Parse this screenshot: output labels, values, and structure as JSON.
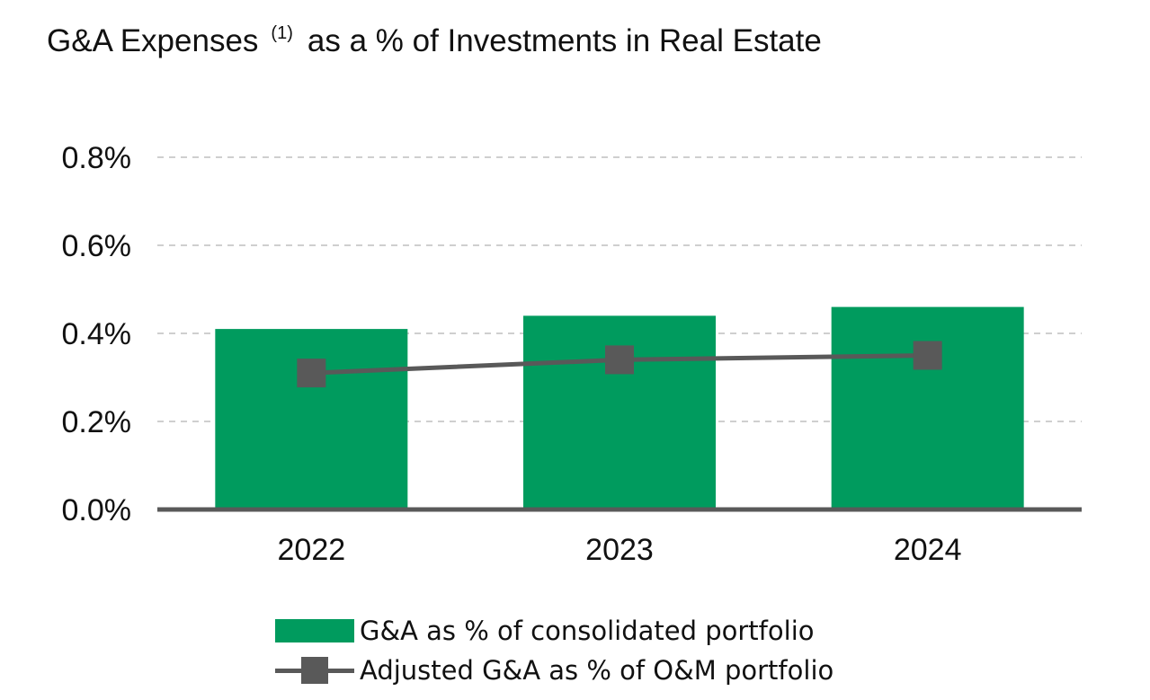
{
  "title": {
    "text": "G&A Expenses",
    "superscript": "(1)",
    "suffix": "as a % of Investments in Real Estate"
  },
  "colors": {
    "bar": "#009B5E",
    "line": "#595959",
    "grid": "#BFBFBF",
    "axis": "#595959"
  },
  "chart_data": {
    "type": "bar",
    "categories": [
      "2022",
      "2023",
      "2024"
    ],
    "y_tick_labels": [
      "0.0%",
      "0.2%",
      "0.4%",
      "0.6%",
      "0.8%"
    ],
    "y_ticks": [
      0.0,
      0.2,
      0.4,
      0.6,
      0.8
    ],
    "ylim": [
      0.0,
      0.8
    ],
    "y_unit": "%",
    "grid": true,
    "legend_position": "bottom",
    "series": [
      {
        "name": "G&A as % of consolidated portfolio",
        "type": "bar",
        "color": "#009B5E",
        "values": [
          0.41,
          0.44,
          0.46
        ]
      },
      {
        "name": "Adjusted G&A as % of O&M portfolio",
        "type": "line",
        "marker": "square",
        "color": "#595959",
        "values": [
          0.31,
          0.34,
          0.35
        ]
      }
    ]
  },
  "legend": {
    "items": [
      {
        "label": "G&A as % of consolidated portfolio",
        "kind": "bar"
      },
      {
        "label": "Adjusted G&A as % of O&M portfolio",
        "kind": "line-square"
      }
    ]
  }
}
